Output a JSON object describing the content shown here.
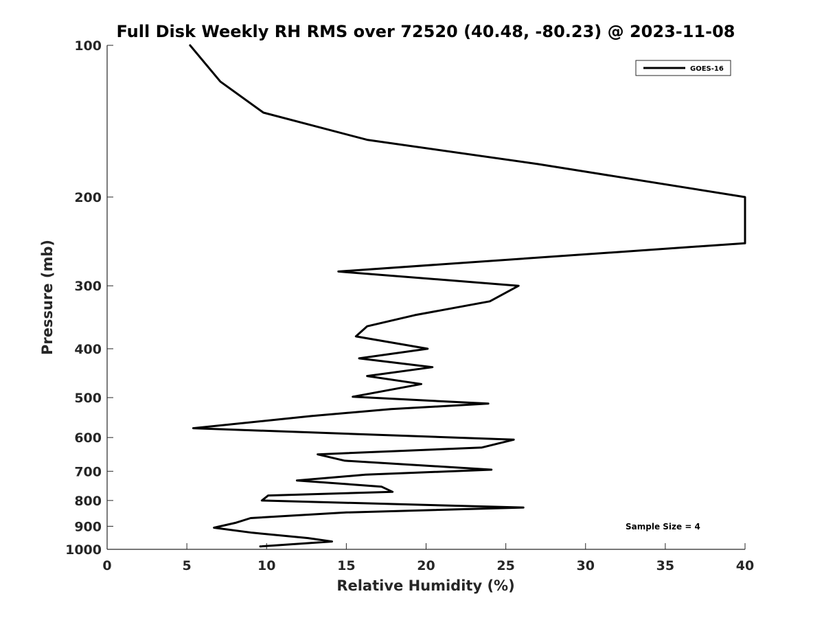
{
  "chart_data": {
    "type": "line",
    "title": "Full Disk Weekly RH RMS over 72520 (40.48, -80.23) @ 2023-11-08",
    "xlabel": "Relative Humidity (%)",
    "ylabel": "Pressure (mb)",
    "xlim": [
      0,
      40
    ],
    "ylim": [
      100,
      1000
    ],
    "yscale": "log",
    "y_reversed": true,
    "grid": false,
    "x_ticks": [
      "0",
      "5",
      "10",
      "15",
      "20",
      "25",
      "30",
      "35",
      "40"
    ],
    "y_ticks": [
      "100",
      "200",
      "300",
      "400",
      "500",
      "600",
      "700",
      "800",
      "900",
      "1000"
    ],
    "legend": {
      "placement": "top-right",
      "entries": [
        "GOES-16"
      ]
    },
    "annotation": "Sample Size = 4",
    "series": [
      {
        "name": "GOES-16",
        "color": "#000000",
        "points": [
          [
            5.2,
            100
          ],
          [
            7.1,
            118
          ],
          [
            9.8,
            136
          ],
          [
            16.3,
            154
          ],
          [
            27.0,
            172
          ],
          [
            40.0,
            200
          ],
          [
            40.0,
            247
          ],
          [
            14.5,
            281
          ],
          [
            25.8,
            300
          ],
          [
            24.0,
            322
          ],
          [
            19.3,
            343
          ],
          [
            16.3,
            361
          ],
          [
            15.6,
            378
          ],
          [
            20.1,
            400
          ],
          [
            15.8,
            418
          ],
          [
            20.4,
            435
          ],
          [
            16.3,
            453
          ],
          [
            19.7,
            470
          ],
          [
            15.4,
            498
          ],
          [
            23.9,
            514
          ],
          [
            17.8,
            527
          ],
          [
            12.8,
            544
          ],
          [
            5.4,
            575
          ],
          [
            25.5,
            606
          ],
          [
            23.5,
            628
          ],
          [
            13.2,
            648
          ],
          [
            14.9,
            667
          ],
          [
            24.1,
            695
          ],
          [
            16.2,
            711
          ],
          [
            11.9,
            730
          ],
          [
            17.2,
            751
          ],
          [
            17.9,
            769
          ],
          [
            10.1,
            782
          ],
          [
            9.7,
            800
          ],
          [
            26.1,
            826
          ],
          [
            15.0,
            845
          ],
          [
            9.0,
            867
          ],
          [
            8.1,
            885
          ],
          [
            6.7,
            906
          ],
          [
            9.1,
            927
          ],
          [
            12.6,
            950
          ],
          [
            14.1,
            965
          ],
          [
            9.6,
            987
          ]
        ]
      }
    ]
  }
}
